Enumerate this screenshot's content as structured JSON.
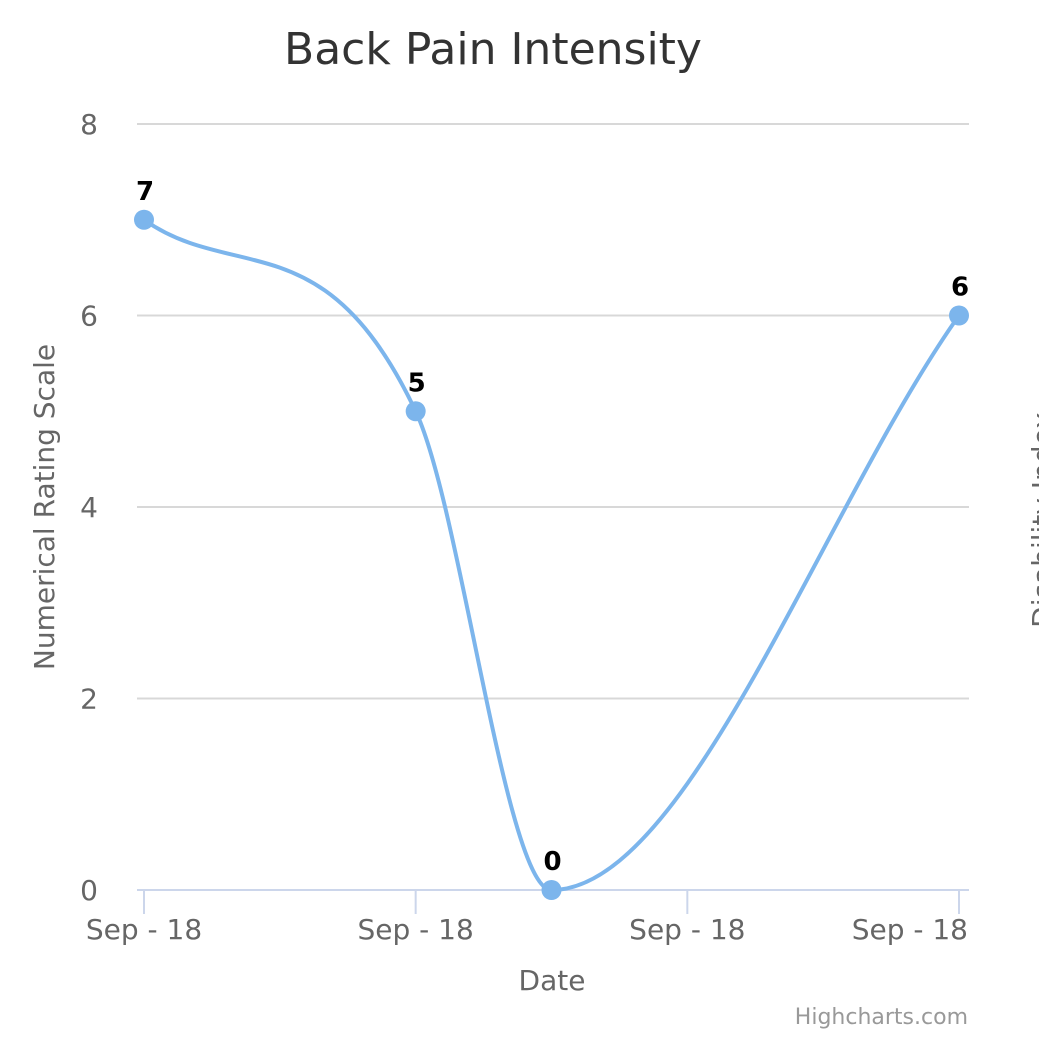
{
  "chart_data": {
    "type": "line",
    "title": "Back Pain Intensity",
    "xlabel": "Date",
    "ylabel": "Numerical Rating Scale",
    "right_axis_label": "Disability Index",
    "x_tick_labels": [
      "Sep - 18",
      "Sep - 18",
      "Sep - 18",
      "Sep - 18"
    ],
    "y_ticks": [
      0,
      2,
      4,
      6,
      8
    ],
    "ylim": [
      0,
      8
    ],
    "grid": true,
    "smoothed": true,
    "series": [
      {
        "color": "#7cb5ec",
        "points": [
          {
            "x": 0,
            "y": 7
          },
          {
            "x": 1,
            "y": 5
          },
          {
            "x": 1.5,
            "y": 0
          },
          {
            "x": 3,
            "y": 6
          }
        ]
      }
    ],
    "x_tick_positions": [
      0,
      1,
      2,
      3
    ],
    "xlim": [
      0,
      3
    ],
    "credits": "Highcharts.com"
  }
}
